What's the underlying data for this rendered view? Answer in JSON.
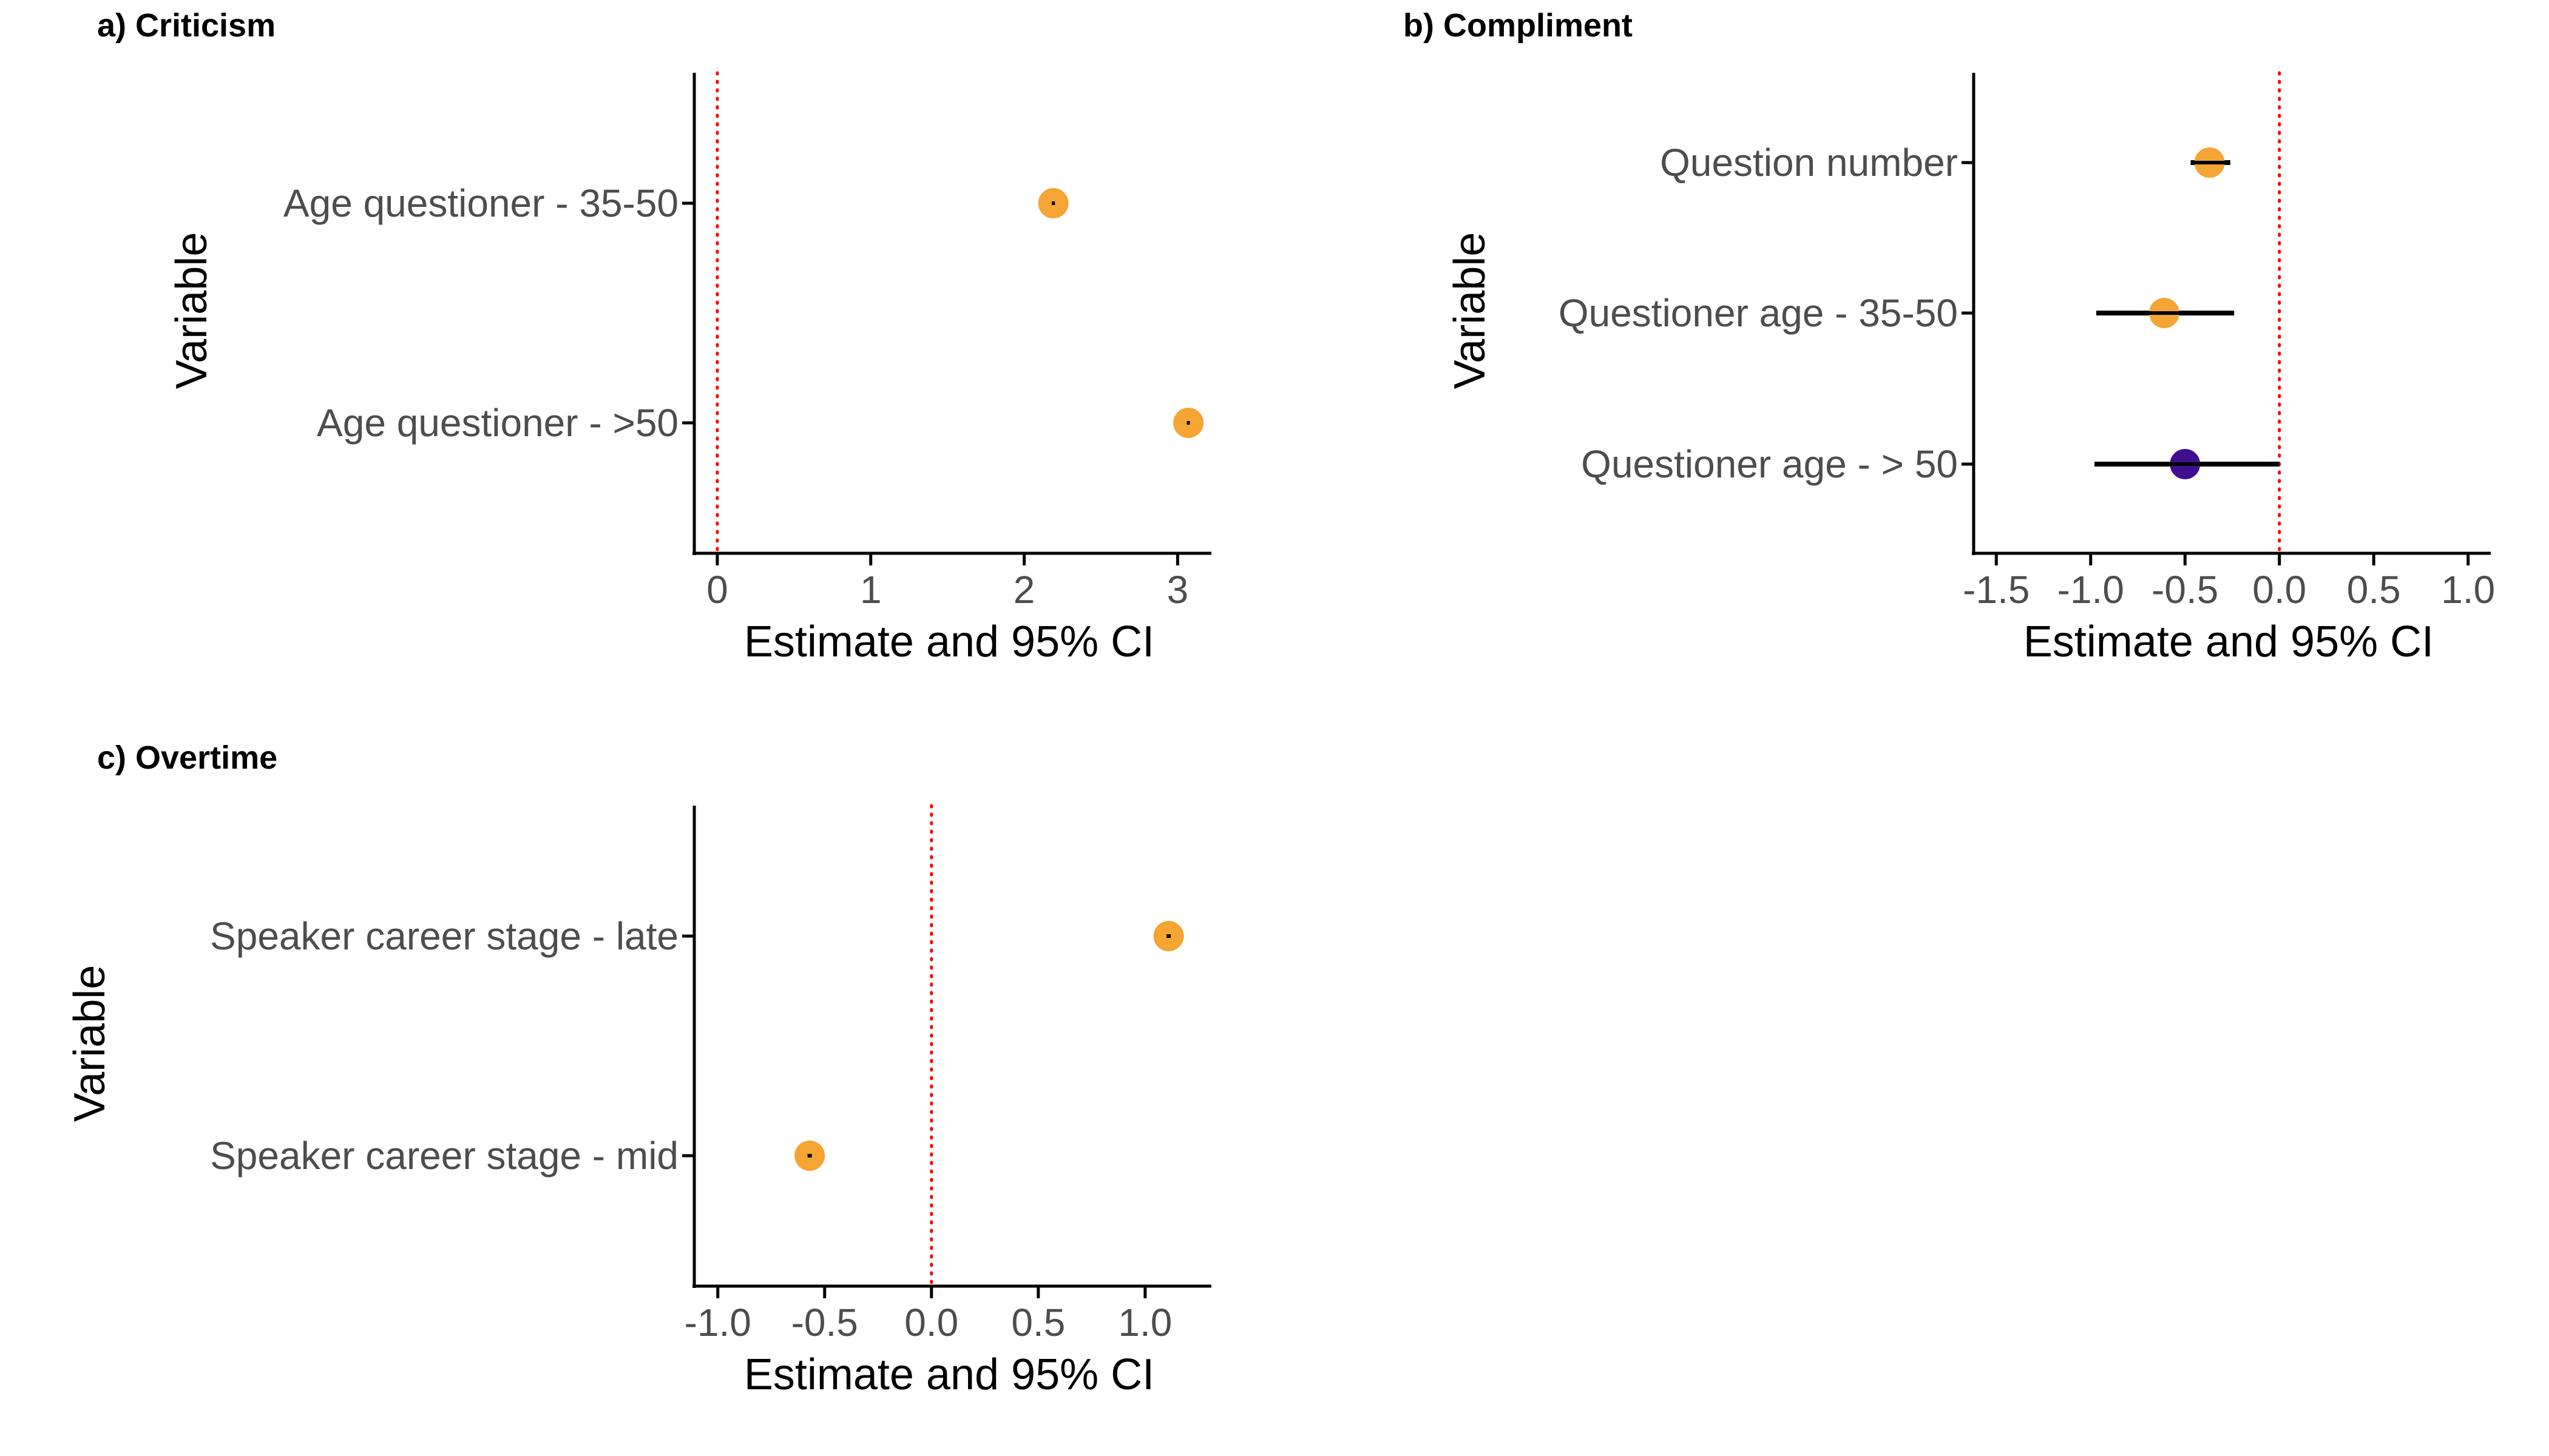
{
  "chart_data": [
    {
      "type": "forest",
      "title": "a) Criticism",
      "xlabel": "Estimate and 95% CI",
      "ylabel": "Variable",
      "xlim": [
        -0.15,
        3.22
      ],
      "xticks": [
        0,
        1,
        2,
        3
      ],
      "xtick_labels": [
        "0",
        "1",
        "2",
        "3"
      ],
      "reference_line": 0,
      "grid": false,
      "legend": "none",
      "categories": [
        "Age questioner - 35-50",
        "Age questioner - >50"
      ],
      "estimates": [
        2.19,
        3.07
      ],
      "ci_low": [
        2.18,
        3.06
      ],
      "ci_high": [
        2.2,
        3.08
      ],
      "point_colors": [
        "#f5a533",
        "#f5a533"
      ]
    },
    {
      "type": "forest",
      "title": "b) Compliment",
      "xlabel": "Estimate and 95% CI",
      "ylabel": "Variable",
      "xlim": [
        -1.62,
        1.12
      ],
      "xticks": [
        -1.5,
        -1.0,
        -0.5,
        0.0,
        0.5,
        1.0
      ],
      "xtick_labels": [
        "-1.5",
        "-1.0",
        "-0.5",
        "0.0",
        "0.5",
        "1.0"
      ],
      "reference_line": 0,
      "grid": false,
      "legend": "none",
      "categories": [
        "Question number",
        "Questioner age - 35-50",
        "Questioner age - > 50"
      ],
      "estimates": [
        -0.37,
        -0.61,
        -0.5
      ],
      "ci_low": [
        -0.47,
        -0.97,
        -0.98
      ],
      "ci_high": [
        -0.26,
        -0.24,
        0.0
      ],
      "point_colors": [
        "#f5a533",
        "#f5a533",
        "#3f0f8f"
      ]
    },
    {
      "type": "forest",
      "title": "c) Overtime",
      "xlabel": "Estimate and 95% CI",
      "ylabel": "Variable",
      "xlim": [
        -1.11,
        1.31
      ],
      "xticks": [
        -1.0,
        -0.5,
        0.0,
        0.5,
        1.0
      ],
      "xtick_labels": [
        "-1.0",
        "-0.5",
        "0.0",
        "0.5",
        "1.0"
      ],
      "reference_line": 0,
      "grid": false,
      "legend": "none",
      "categories": [
        "Speaker career stage - late",
        "Speaker career stage - mid"
      ],
      "estimates": [
        1.11,
        -0.57
      ],
      "ci_low": [
        1.1,
        -0.58
      ],
      "ci_high": [
        1.12,
        -0.56
      ],
      "point_colors": [
        "#f5a533",
        "#f5a533"
      ]
    }
  ],
  "colors": {
    "reference_line": "#ff0000",
    "axis": "#000000",
    "ci_bar": "#000000",
    "text": "#4d4d4d"
  }
}
